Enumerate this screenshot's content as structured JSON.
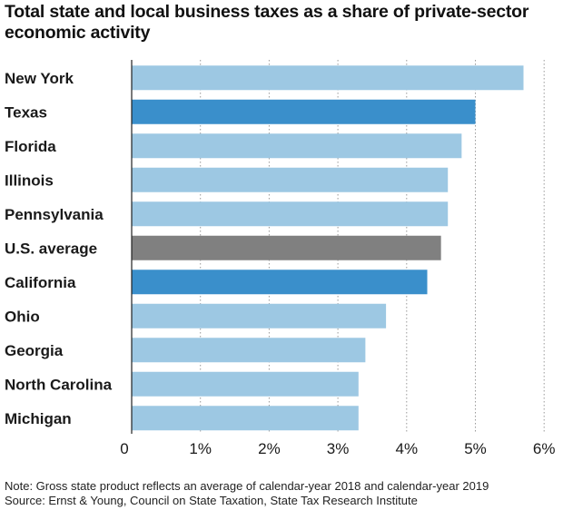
{
  "chart_data": {
    "type": "bar",
    "orientation": "horizontal",
    "title": "Total state and local business taxes as a share of private-sector economic activity",
    "categories": [
      "New York",
      "Texas",
      "Florida",
      "Illinois",
      "Pennsylvania",
      "U.S. average",
      "California",
      "Ohio",
      "Georgia",
      "North Carolina",
      "Michigan"
    ],
    "values": [
      5.7,
      5.0,
      4.8,
      4.6,
      4.6,
      4.5,
      4.3,
      3.7,
      3.4,
      3.3,
      3.3
    ],
    "colors": [
      "#9dc8e3",
      "#3a8fcb",
      "#9dc8e3",
      "#9dc8e3",
      "#9dc8e3",
      "#808080",
      "#3a8fcb",
      "#9dc8e3",
      "#9dc8e3",
      "#9dc8e3",
      "#9dc8e3"
    ],
    "xlim": [
      0,
      6
    ],
    "xticks": [
      "0",
      "1%",
      "2%",
      "3%",
      "4%",
      "5%",
      "6%"
    ],
    "xlabel": "",
    "ylabel": "",
    "grid": "vertical-dotted",
    "note": "Note: Gross state product reflects an average of calendar-year 2018 and calendar-year 2019",
    "source": "Source: Ernst & Young, Council on State Taxation, State Tax Research Institute"
  }
}
